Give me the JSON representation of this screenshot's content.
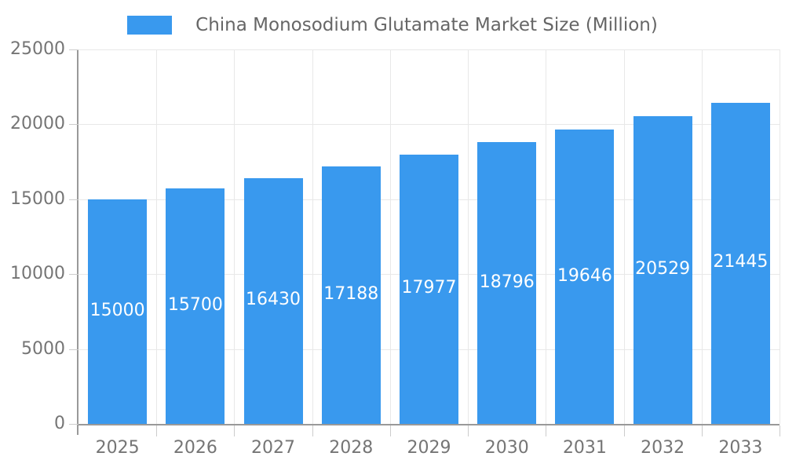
{
  "legend": {
    "label": "China Monosodium Glutamate Market Size (Million)"
  },
  "colors": {
    "bar": "#3999EE",
    "grid": "#E8E8E8",
    "axis": "#999999",
    "tick": "#CCCCCC",
    "tick_label": "#757575",
    "legend_text": "#666666",
    "value_label": "#FFFFFF",
    "background": "#FFFFFF"
  },
  "chart_data": {
    "type": "bar",
    "title": "China Monosodium Glutamate Market Size (Million)",
    "categories": [
      "2025",
      "2026",
      "2027",
      "2028",
      "2029",
      "2030",
      "2031",
      "2032",
      "2033"
    ],
    "values": [
      15000,
      15700,
      16430,
      17188,
      17977,
      18796,
      19646,
      20529,
      21445
    ],
    "series": [
      {
        "name": "China Monosodium Glutamate Market Size (Million)",
        "values": [
          15000,
          15700,
          16430,
          17188,
          17977,
          18796,
          19646,
          20529,
          21445
        ]
      }
    ],
    "xlabel": "",
    "ylabel": "",
    "ylim": [
      0,
      25000
    ],
    "ytick_step": 5000,
    "ytick_labels": [
      "0",
      "5000",
      "10000",
      "15000",
      "20000",
      "25000"
    ],
    "grid": true,
    "legend_position": "top",
    "value_labels": "inside-bar-centered"
  }
}
